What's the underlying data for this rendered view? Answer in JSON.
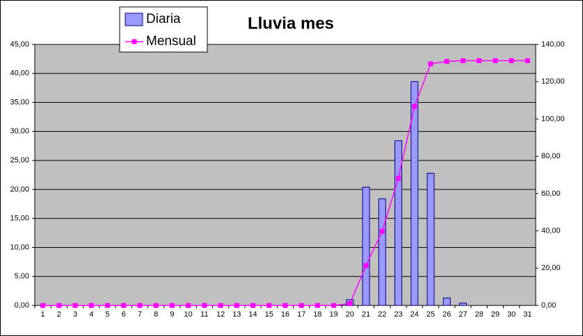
{
  "chart_data": {
    "type": "bar-line",
    "title": "Lluvia mes",
    "categories": [
      "1",
      "2",
      "3",
      "4",
      "5",
      "6",
      "7",
      "8",
      "9",
      "10",
      "11",
      "12",
      "13",
      "14",
      "15",
      "16",
      "17",
      "18",
      "19",
      "20",
      "21",
      "22",
      "23",
      "24",
      "25",
      "26",
      "27",
      "28",
      "29",
      "30",
      "31"
    ],
    "series": [
      {
        "name": "Diaria",
        "type": "bar",
        "color": "#9999ff",
        "values": [
          0,
          0,
          0,
          0,
          0,
          0,
          0,
          0,
          0,
          0,
          0,
          0,
          0,
          0,
          0,
          0,
          0,
          0,
          0,
          1.0,
          20.4,
          18.4,
          28.4,
          38.6,
          22.8,
          1.3,
          0.4,
          0,
          0,
          0,
          0
        ]
      },
      {
        "name": "Mensual",
        "type": "line",
        "axis": "y2",
        "color": "#ff00ff",
        "values": [
          0,
          0,
          0,
          0,
          0,
          0,
          0,
          0,
          0,
          0,
          0,
          0,
          0,
          0,
          0,
          0,
          0,
          0,
          0,
          1.0,
          21.4,
          39.8,
          68.2,
          106.8,
          129.6,
          130.9,
          131.3,
          131.3,
          131.3,
          131.3,
          131.3
        ]
      }
    ],
    "ylim": [
      0,
      45
    ],
    "yticks": [
      {
        "value": 0,
        "label": "0,00"
      },
      {
        "value": 5,
        "label": "5,00"
      },
      {
        "value": 10,
        "label": "10,00"
      },
      {
        "value": 15,
        "label": "15,00"
      },
      {
        "value": 20,
        "label": "20,00"
      },
      {
        "value": 25,
        "label": "25,00"
      },
      {
        "value": 30,
        "label": "30,00"
      },
      {
        "value": 35,
        "label": "35,00"
      },
      {
        "value": 40,
        "label": "40,00"
      },
      {
        "value": 45,
        "label": "45,00"
      }
    ],
    "y2lim": [
      0,
      140
    ],
    "y2ticks": [
      {
        "value": 0,
        "label": "0,00"
      },
      {
        "value": 20,
        "label": "20,00"
      },
      {
        "value": 40,
        "label": "40,00"
      },
      {
        "value": 60,
        "label": "60,00"
      },
      {
        "value": 80,
        "label": "80,00"
      },
      {
        "value": 100,
        "label": "100,00"
      },
      {
        "value": 120,
        "label": "120,00"
      },
      {
        "value": 140,
        "label": "140,00"
      }
    ],
    "grid": true
  }
}
